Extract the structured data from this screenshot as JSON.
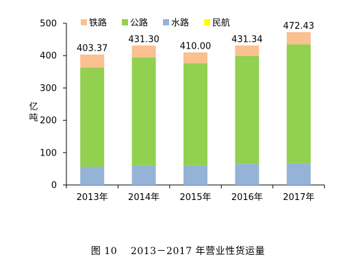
{
  "chart_data": {
    "type": "bar",
    "stacked": true,
    "categories": [
      "2013年",
      "2014年",
      "2015年",
      "2016年",
      "2017年"
    ],
    "series": [
      {
        "name": "水路",
        "values": [
          56,
          61,
          61,
          65,
          67
        ]
      },
      {
        "name": "公路",
        "values": [
          307,
          333,
          315,
          334,
          368
        ]
      },
      {
        "name": "铁路",
        "values": [
          40.37,
          37.3,
          34.0,
          32.34,
          37.43
        ]
      },
      {
        "name": "民航",
        "values": [
          0.0,
          0.0,
          0.0,
          0.0,
          0.0
        ]
      }
    ],
    "totals": [
      "403.37",
      "431.30",
      "410.00",
      "431.34",
      "472.43"
    ],
    "totals_values": [
      403.37,
      431.3,
      410.0,
      431.34,
      472.43
    ],
    "legend": [
      "铁路",
      "公路",
      "水路",
      "民航"
    ],
    "ylabel": "亿吨",
    "ylim": [
      0,
      500
    ],
    "yticks": [
      "0",
      "100",
      "200",
      "300",
      "400",
      "500"
    ],
    "ytick_values": [
      0,
      100,
      200,
      300,
      400,
      500
    ],
    "grid": false,
    "legend_position": "top"
  },
  "colors": {
    "铁路": "#fac090",
    "公路": "#92d050",
    "水路": "#95b3d7",
    "民航": "#ffff00"
  },
  "caption": "图 10    2013－2017 年营业性货运量"
}
